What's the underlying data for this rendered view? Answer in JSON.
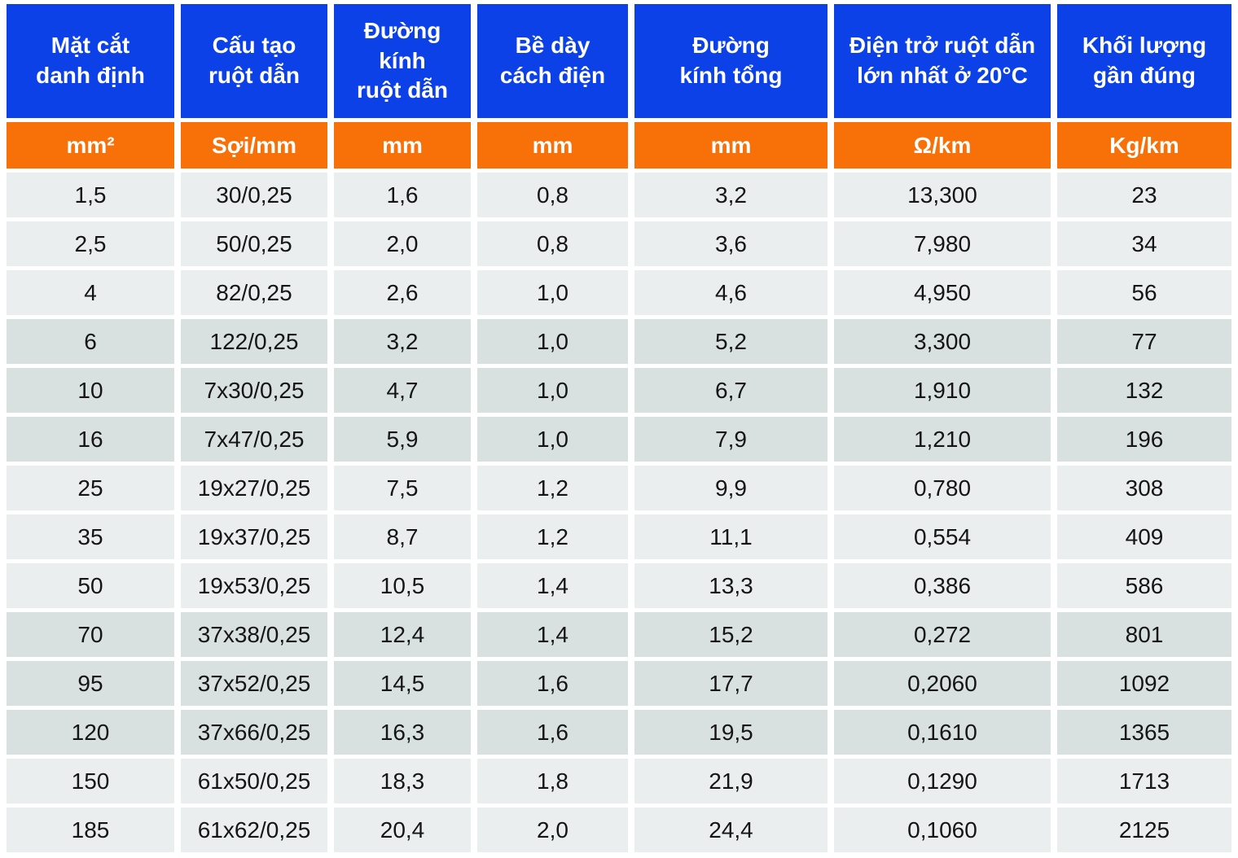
{
  "colors": {
    "header_blue": "#0C41E8",
    "unit_orange": "#F87008",
    "row_light": "#EAEEEE",
    "row_dark": "#D9E0E0",
    "header_text": "#FFFFFF",
    "cell_text": "#151515"
  },
  "table": {
    "columns": [
      {
        "label": "Mặt cắt\ndanh định",
        "unit": "mm²"
      },
      {
        "label": "Cấu tạo\nruột dẫn",
        "unit": "Sợi/mm"
      },
      {
        "label": "Đường\nkính\nruột dẫn",
        "unit": "mm"
      },
      {
        "label": "Bề dày\ncách điện",
        "unit": "mm"
      },
      {
        "label": "Đường\nkính tổng",
        "unit": "mm"
      },
      {
        "label": "Điện trở ruột dẫn\nlớn nhất ở 20°C",
        "unit": "Ω/km"
      },
      {
        "label": "Khối lượng\ngần đúng",
        "unit": "Kg/km"
      }
    ],
    "rows": [
      [
        "1,5",
        "30/0,25",
        "1,6",
        "0,8",
        "3,2",
        "13,300",
        "23"
      ],
      [
        "2,5",
        "50/0,25",
        "2,0",
        "0,8",
        "3,6",
        "7,980",
        "34"
      ],
      [
        "4",
        "82/0,25",
        "2,6",
        "1,0",
        "4,6",
        "4,950",
        "56"
      ],
      [
        "6",
        "122/0,25",
        "3,2",
        "1,0",
        "5,2",
        "3,300",
        "77"
      ],
      [
        "10",
        "7x30/0,25",
        "4,7",
        "1,0",
        "6,7",
        "1,910",
        "132"
      ],
      [
        "16",
        "7x47/0,25",
        "5,9",
        "1,0",
        "7,9",
        "1,210",
        "196"
      ],
      [
        "25",
        "19x27/0,25",
        "7,5",
        "1,2",
        "9,9",
        "0,780",
        "308"
      ],
      [
        "35",
        "19x37/0,25",
        "8,7",
        "1,2",
        "11,1",
        "0,554",
        "409"
      ],
      [
        "50",
        "19x53/0,25",
        "10,5",
        "1,4",
        "13,3",
        "0,386",
        "586"
      ],
      [
        "70",
        "37x38/0,25",
        "12,4",
        "1,4",
        "15,2",
        "0,272",
        "801"
      ],
      [
        "95",
        "37x52/0,25",
        "14,5",
        "1,6",
        "17,7",
        "0,2060",
        "1092"
      ],
      [
        "120",
        "37x66/0,25",
        "16,3",
        "1,6",
        "19,5",
        "0,1610",
        "1365"
      ],
      [
        "150",
        "61x50/0,25",
        "18,3",
        "1,8",
        "21,9",
        "0,1290",
        "1713"
      ],
      [
        "185",
        "61x62/0,25",
        "20,4",
        "2,0",
        "24,4",
        "0,1060",
        "2125"
      ]
    ],
    "dark_row_indices": [
      3,
      4,
      5,
      9,
      10,
      11
    ]
  }
}
